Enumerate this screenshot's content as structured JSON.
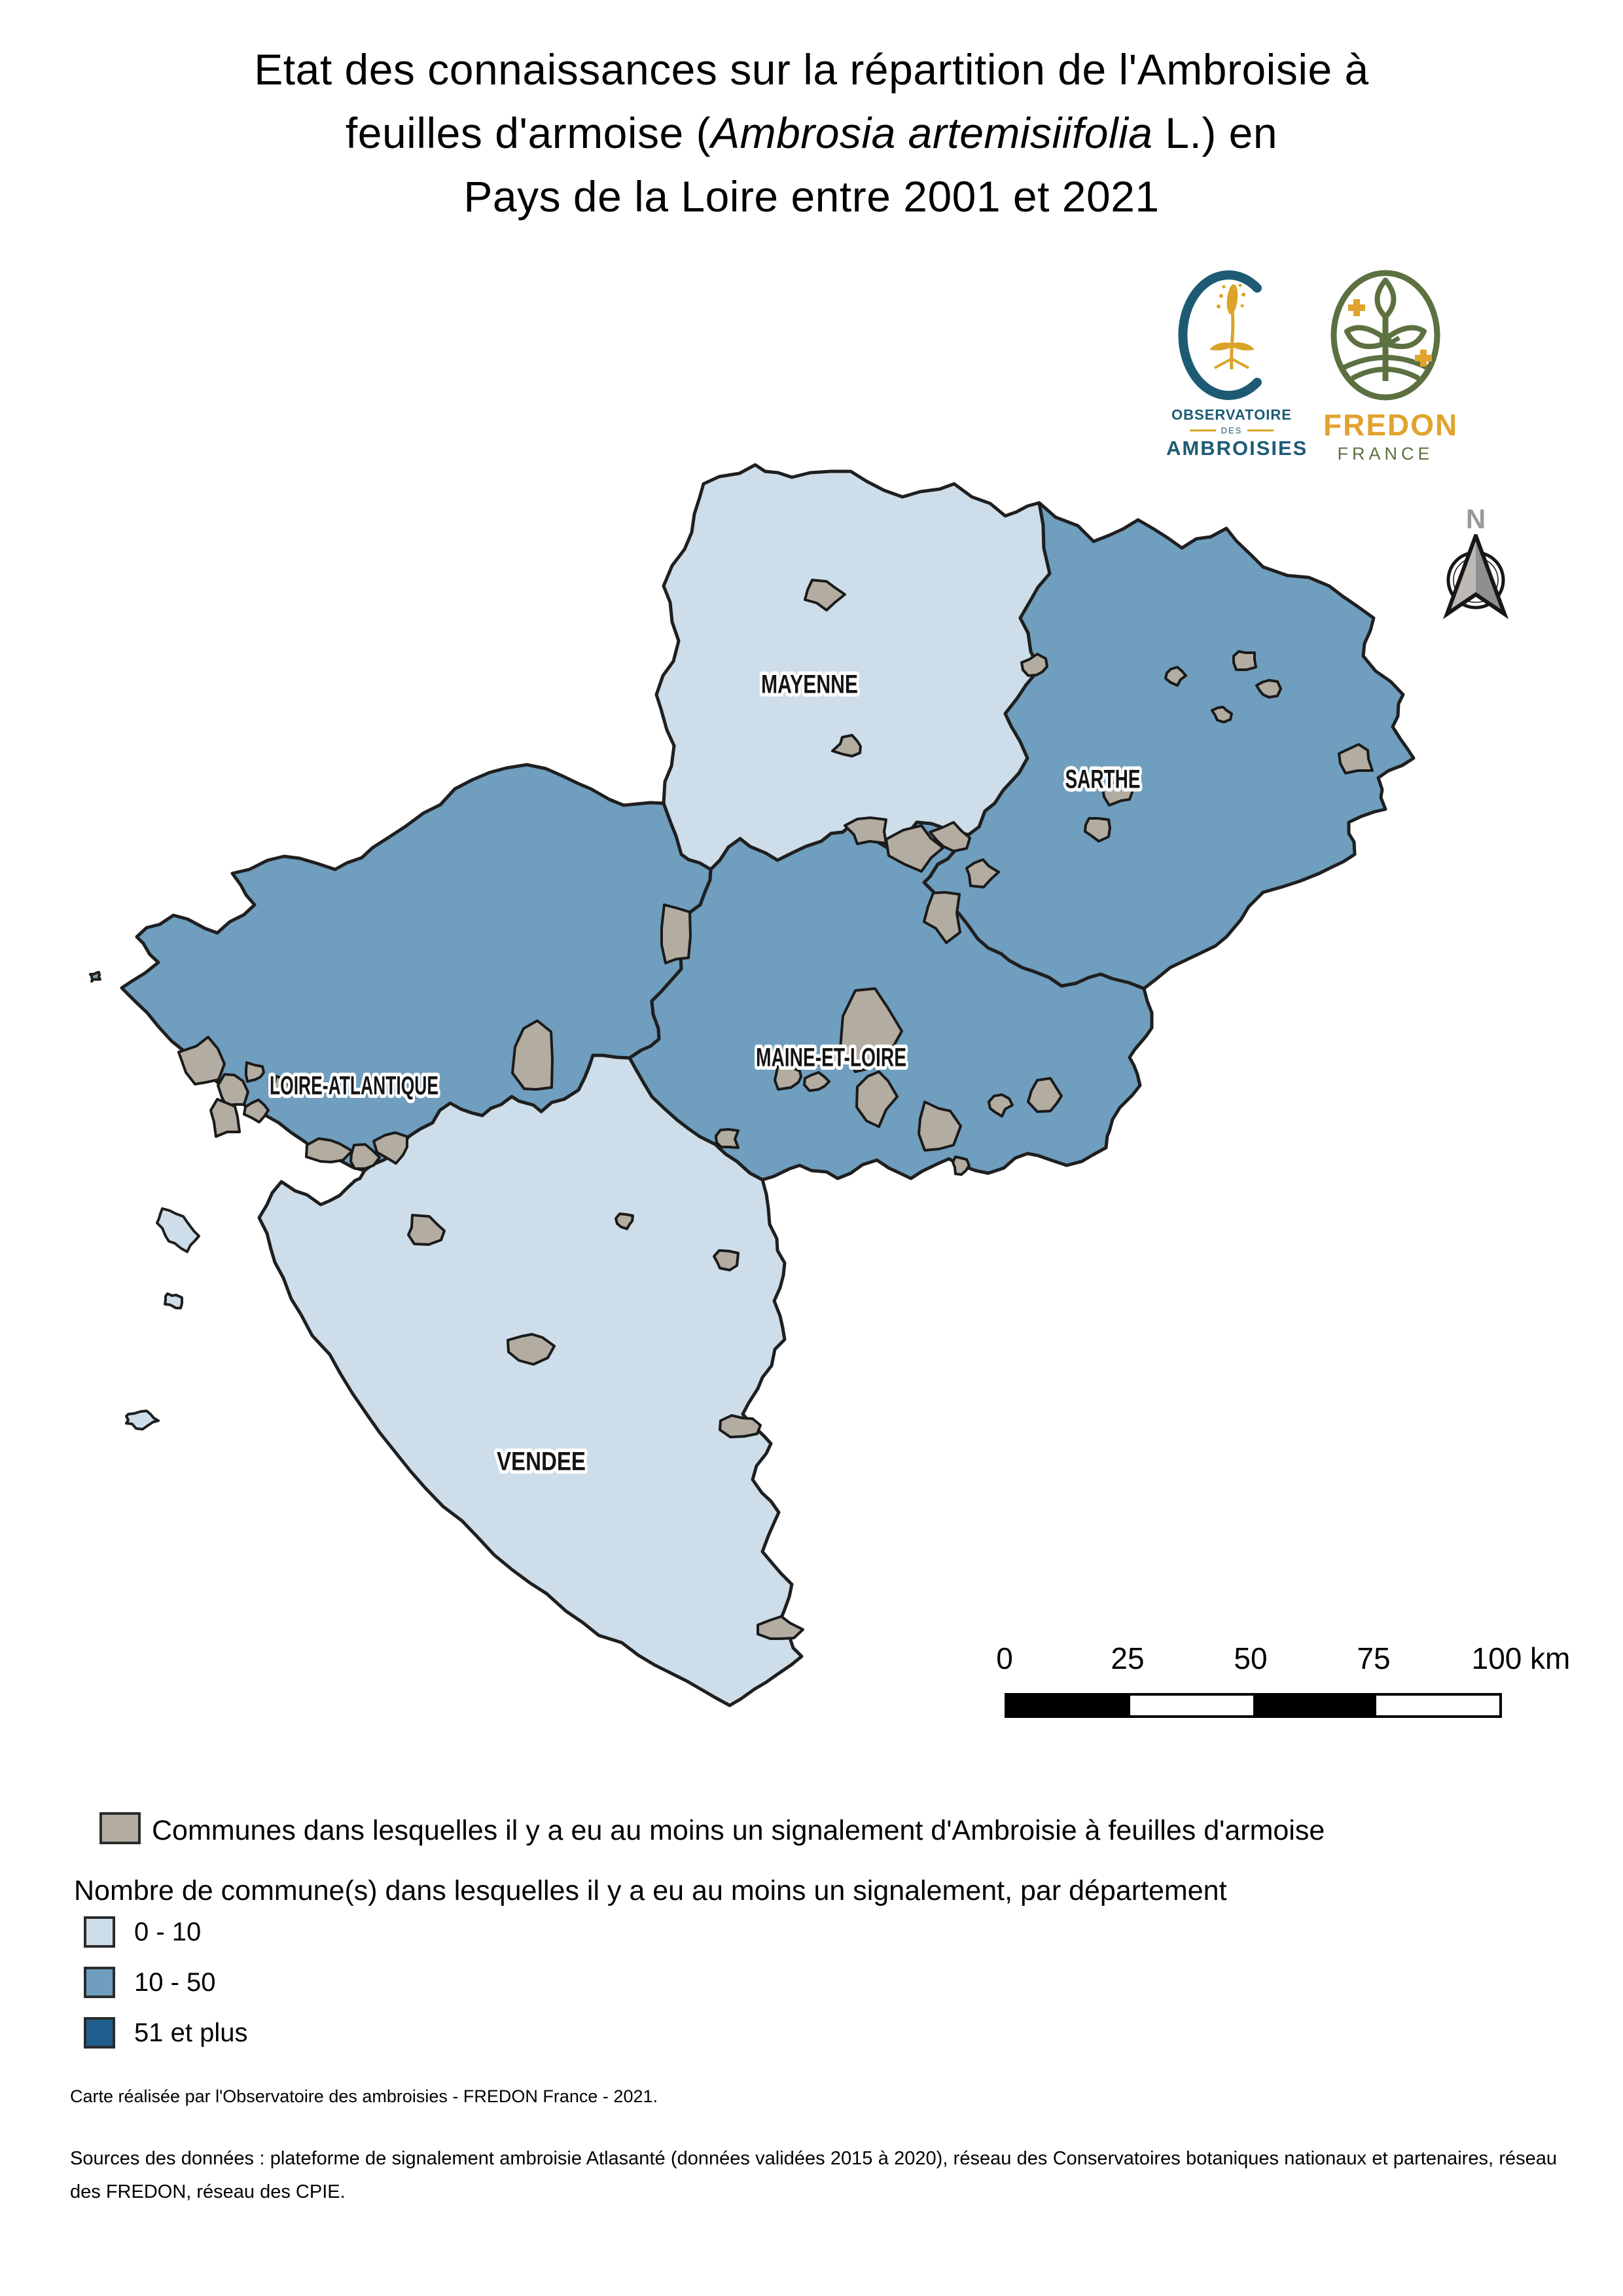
{
  "title": {
    "line1": "Etat des connaissances sur la répartition de l'Ambroisie à",
    "line2_pre": "feuilles d'armoise (",
    "line2_italic": "Ambrosia artemisiifolia",
    "line2_post": " L.) en",
    "line3": "Pays de la Loire entre 2001 et 2021"
  },
  "logos": {
    "observatoire": {
      "line1": "OBSERVATOIRE",
      "line2": "DES",
      "line3": "AMBROISIES",
      "accent_teal": "#1d5b74",
      "accent_gold": "#d9a427"
    },
    "fredon": {
      "line1": "FREDON",
      "line2": "FRANCE",
      "accent_gold": "#e0a32e",
      "accent_olive": "#5c7040"
    }
  },
  "north_arrow": {
    "label": "N"
  },
  "map": {
    "labels": {
      "mayenne": "MAYENNE",
      "sarthe": "SARTHE",
      "loire_atlantique": "LOIRE-ATLANTIQUE",
      "maine_et_loire": "MAINE-ET-LOIRE",
      "vendee": "VENDEE"
    },
    "border_color": "#1f1f1f",
    "commune_border_color": "#1a1a1a"
  },
  "scalebar": {
    "ticks": [
      "0",
      "25",
      "50",
      "75",
      "100"
    ],
    "unit": "km"
  },
  "legend": {
    "communes": {
      "label": "Communes dans lesquelles il y a eu au moins un signalement d'Ambroisie à feuilles d'armoise",
      "color": "#b3aca1"
    },
    "classes_title": "Nombre de commune(s) dans lesquelles il y a eu au moins un signalement, par département",
    "classes": [
      {
        "label": "0 - 10",
        "color": "#cddde9"
      },
      {
        "label": "10 - 50",
        "color": "#6f9ebe"
      },
      {
        "label": "51 et plus",
        "color": "#1f5e8d"
      }
    ]
  },
  "credits": {
    "line1": "Carte réalisée par l'Observatoire des ambroisies - FREDON France - 2021.",
    "sources": "Sources des données : plateforme de signalement ambroisie Atlasanté (données validées 2015 à 2020), réseau des Conservatoires botaniques nationaux et partenaires, réseau des FREDON, réseau des CPIE."
  }
}
